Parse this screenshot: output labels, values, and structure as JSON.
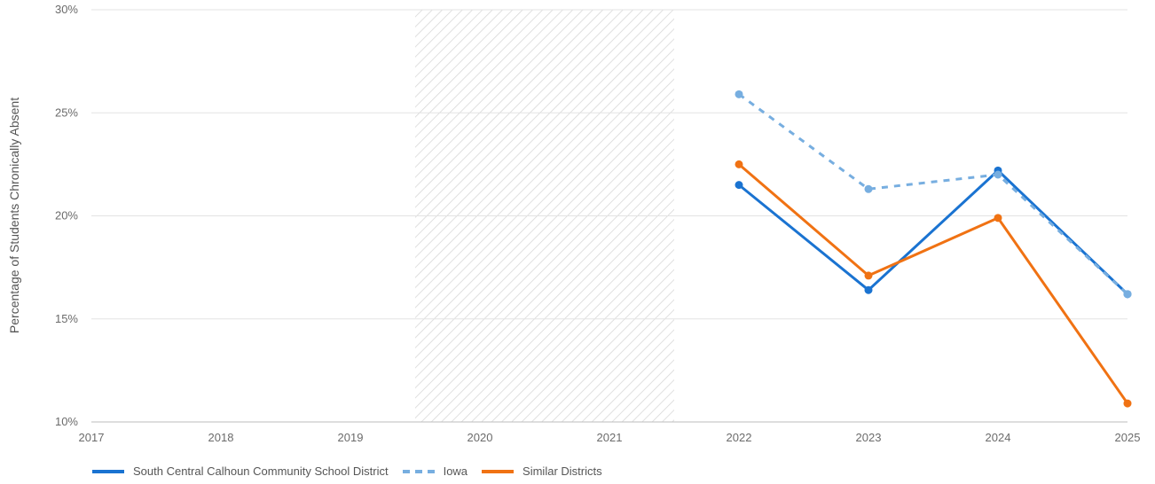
{
  "chart_data": {
    "type": "line",
    "title": "",
    "xlabel": "",
    "ylabel": "Percentage of Students Chronically Absent",
    "x": [
      2017,
      2018,
      2019,
      2020,
      2021,
      2022,
      2023,
      2024,
      2025
    ],
    "x_tick_labels": [
      "2017",
      "2018",
      "2019",
      "2020",
      "2021",
      "2022",
      "2023",
      "2024",
      "2025"
    ],
    "ylim": [
      10,
      30
    ],
    "y_ticks": [
      10,
      15,
      20,
      25,
      30
    ],
    "y_tick_labels": [
      "10%",
      "15%",
      "20%",
      "25%",
      "30%"
    ],
    "grid": true,
    "shaded_region": {
      "x_from": 2019.5,
      "x_to": 2021.5,
      "pattern": "diagonal-hatch"
    },
    "legend_position": "bottom-left",
    "series": [
      {
        "name": "South Central Calhoun Community School District",
        "color": "#1a73d1",
        "dashed": false,
        "x": [
          2022,
          2023,
          2024,
          2025
        ],
        "values": [
          21.5,
          16.4,
          22.2,
          16.2
        ]
      },
      {
        "name": "Iowa",
        "color": "#77aee0",
        "dashed": true,
        "x": [
          2022,
          2023,
          2024,
          2025
        ],
        "values": [
          25.9,
          21.3,
          22.0,
          16.2
        ]
      },
      {
        "name": "Similar Districts",
        "color": "#f07213",
        "dashed": false,
        "x": [
          2022,
          2023,
          2024,
          2025
        ],
        "values": [
          22.5,
          17.1,
          19.9,
          10.9
        ]
      }
    ]
  }
}
